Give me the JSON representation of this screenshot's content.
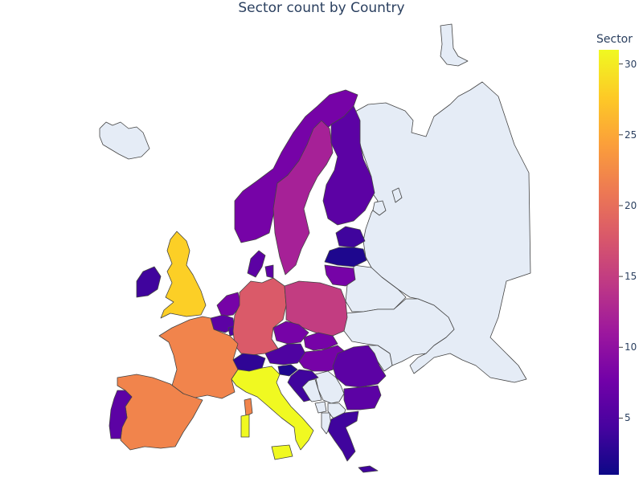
{
  "chart_data": {
    "type": "choropleth",
    "title": "Sector count by Country",
    "colorbar": {
      "title": "Sector",
      "range": [
        1,
        31
      ],
      "ticks": [
        "5",
        "10",
        "15",
        "20",
        "25",
        "30"
      ],
      "colorscale": [
        "#0d0887",
        "#46039f",
        "#7201a8",
        "#9c179e",
        "#bd3786",
        "#d8576b",
        "#ed7953",
        "#fb9f3a",
        "#fdca26",
        "#f0f921"
      ]
    },
    "no_data_color": "#e5ecf6",
    "border_color": "#444444",
    "values": [
      {
        "country": "Italy",
        "value": 31
      },
      {
        "country": "United Kingdom",
        "value": 28
      },
      {
        "country": "Spain",
        "value": 22
      },
      {
        "country": "France",
        "value": 22
      },
      {
        "country": "Germany",
        "value": 18
      },
      {
        "country": "Poland",
        "value": 15
      },
      {
        "country": "Sweden",
        "value": 12
      },
      {
        "country": "Norway",
        "value": 8
      },
      {
        "country": "Finland",
        "value": 6
      },
      {
        "country": "Romania",
        "value": 6
      },
      {
        "country": "Czechia",
        "value": 8
      },
      {
        "country": "Austria",
        "value": 5
      },
      {
        "country": "Slovakia",
        "value": 8
      },
      {
        "country": "Hungary",
        "value": 8
      },
      {
        "country": "Bulgaria",
        "value": 6
      },
      {
        "country": "Greece",
        "value": 4
      },
      {
        "country": "Netherlands",
        "value": 8
      },
      {
        "country": "Belgium",
        "value": 6
      },
      {
        "country": "Denmark",
        "value": 6
      },
      {
        "country": "Portugal",
        "value": 6
      },
      {
        "country": "Lithuania",
        "value": 8
      },
      {
        "country": "Latvia",
        "value": 2
      },
      {
        "country": "Estonia",
        "value": 4
      },
      {
        "country": "Ireland",
        "value": 4
      },
      {
        "country": "Switzerland",
        "value": 3
      },
      {
        "country": "Slovenia",
        "value": 2
      },
      {
        "country": "Croatia",
        "value": 4
      },
      {
        "country": "Luxembourg",
        "value": 5
      }
    ]
  }
}
